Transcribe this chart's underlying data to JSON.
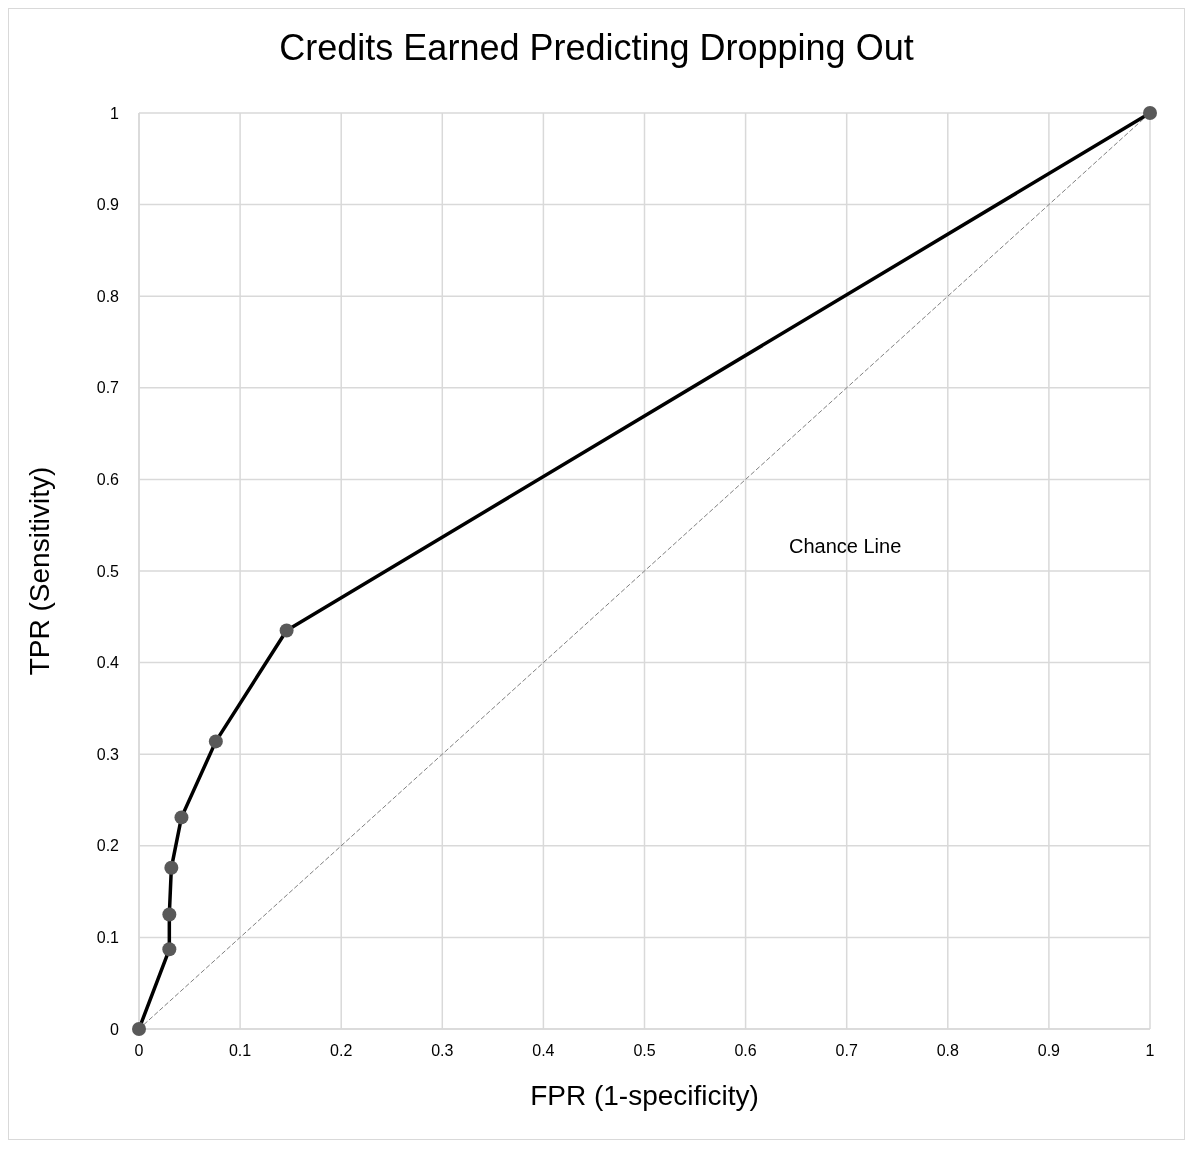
{
  "chart_data": {
    "type": "line",
    "title": "Credits Earned Predicting Dropping Out",
    "xlabel": "FPR (1-specificity)",
    "ylabel": "TPR (Sensitivity)",
    "xlim": [
      0,
      1
    ],
    "xticks": [
      0,
      0.1,
      0.2,
      0.3,
      0.4,
      0.5,
      0.6,
      0.7,
      0.8,
      0.9,
      1
    ],
    "ylim": [
      0,
      1
    ],
    "yticks": [
      0,
      0.1,
      0.2,
      0.3,
      0.4,
      0.5,
      0.6,
      0.7,
      0.8,
      0.9,
      1
    ],
    "grid": true,
    "series": [
      {
        "x": [
          0,
          1
        ],
        "values": [
          0,
          1
        ],
        "color": "#808080",
        "line_style": "dashed",
        "marker": "none"
      },
      {
        "x": [
          0,
          0.03,
          0.03,
          0.032,
          0.042,
          0.076,
          0.146,
          1
        ],
        "values": [
          0,
          0.087,
          0.125,
          0.176,
          0.231,
          0.314,
          0.435,
          1
        ],
        "color": "#000000",
        "colors": [
          "#595959",
          "#595959",
          "#595959",
          "#595959",
          "#595959",
          "#595959",
          "#595959",
          "#595959"
        ],
        "line_style": "solid",
        "marker": "circle"
      }
    ],
    "annotations": [
      "Chance Line"
    ]
  }
}
